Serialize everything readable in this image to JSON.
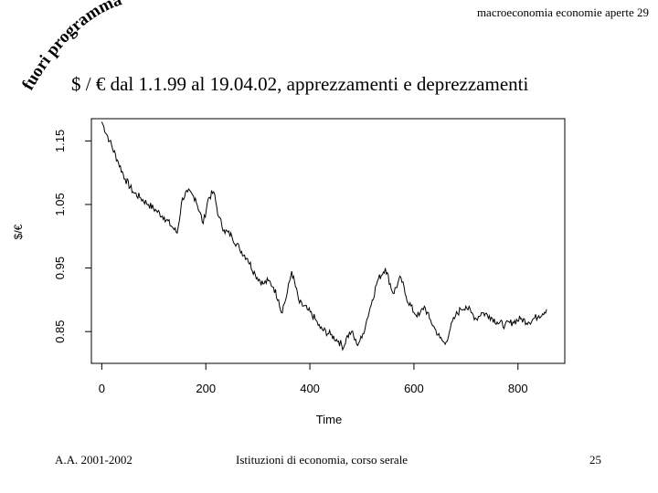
{
  "header": {
    "course": "macroeconomia economie aperte 29",
    "stamp": "fuori programma"
  },
  "title": "$ / € dal 1.1.99 al 19.04.02, apprezzamenti e deprezzamenti",
  "footer": {
    "year": "A.A. 2001-2002",
    "course": "Istituzioni di economia, corso serale",
    "page": "25"
  },
  "chart_data": {
    "type": "line",
    "xlabel": "Time",
    "ylabel": "$/€",
    "xlim": [
      -20,
      890
    ],
    "ylim": [
      0.8,
      1.185
    ],
    "xticks": [
      0,
      200,
      400,
      600,
      800
    ],
    "yticks": [
      0.85,
      0.95,
      1.05,
      1.15
    ],
    "series": [
      {
        "x": [
          0,
          15,
          30,
          45,
          60,
          75,
          90,
          105,
          120,
          135,
          145,
          155,
          165,
          180,
          195,
          205,
          215,
          225,
          235,
          250,
          265,
          280,
          295,
          310,
          320,
          330,
          340,
          345,
          355,
          365,
          380,
          395,
          410,
          420,
          440,
          455,
          465,
          470,
          480,
          490,
          500,
          510,
          520,
          530,
          545,
          560,
          575,
          585,
          600,
          610,
          620,
          630,
          640,
          650,
          660,
          670,
          680,
          690,
          700,
          710,
          720,
          730,
          745,
          760,
          775,
          790,
          805,
          820,
          840,
          855
        ],
        "y": [
          1.18,
          1.15,
          1.12,
          1.09,
          1.07,
          1.06,
          1.05,
          1.04,
          1.03,
          1.015,
          1.005,
          1.06,
          1.07,
          1.06,
          1.02,
          1.06,
          1.07,
          1.03,
          1.01,
          1.0,
          0.98,
          0.965,
          0.94,
          0.925,
          0.93,
          0.92,
          0.9,
          0.88,
          0.905,
          0.945,
          0.895,
          0.885,
          0.87,
          0.855,
          0.845,
          0.835,
          0.825,
          0.84,
          0.85,
          0.83,
          0.84,
          0.87,
          0.9,
          0.93,
          0.95,
          0.91,
          0.935,
          0.905,
          0.88,
          0.875,
          0.89,
          0.87,
          0.855,
          0.84,
          0.83,
          0.855,
          0.875,
          0.885,
          0.89,
          0.88,
          0.87,
          0.88,
          0.875,
          0.865,
          0.86,
          0.865,
          0.87,
          0.865,
          0.875,
          0.885
        ]
      }
    ]
  }
}
